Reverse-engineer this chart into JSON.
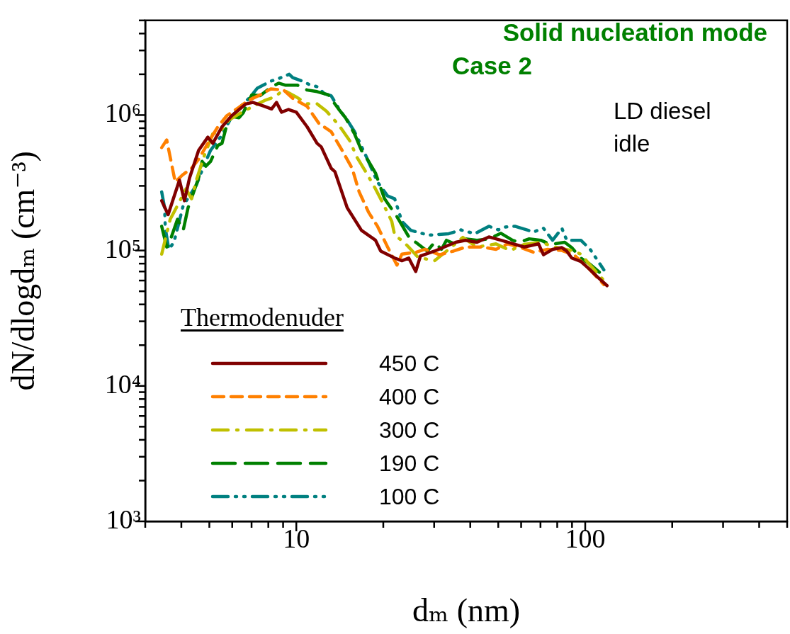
{
  "chart_data": {
    "type": "line",
    "xlabel": "dₘ (nm)",
    "ylabel": "dN/dlogdₘ (cm⁻³)",
    "legend_title": "Thermodenuder",
    "annotations": [
      "Solid nucleation mode",
      "Case 2",
      "LD diesel",
      "idle"
    ],
    "log": "xy",
    "grid": false,
    "legend": "bottom left",
    "marker": "none",
    "xlim": [
      3,
      500
    ],
    "ylim": [
      1000,
      5000000
    ],
    "xticks": [
      {
        "value": 3,
        "label": null
      },
      {
        "value": 4,
        "label": null
      },
      {
        "value": 5,
        "label": null
      },
      {
        "value": 6,
        "label": null
      },
      {
        "value": 7,
        "label": null
      },
      {
        "value": 8,
        "label": null
      },
      {
        "value": 9,
        "label": null
      },
      10,
      {
        "value": 20,
        "label": null
      },
      {
        "value": 30,
        "label": null
      },
      {
        "value": 40,
        "label": null
      },
      {
        "value": 50,
        "label": null
      },
      {
        "value": 60,
        "label": null
      },
      {
        "value": 70,
        "label": null
      },
      {
        "value": 80,
        "label": null
      },
      {
        "value": 90,
        "label": null
      },
      100,
      {
        "value": 200,
        "label": null
      },
      {
        "value": 300,
        "label": null
      },
      {
        "value": 400,
        "label": null
      },
      {
        "value": 500,
        "label": null
      }
    ],
    "yticks": [
      {
        "value": 1000,
        "label": "10³"
      },
      {
        "value": 2000,
        "label": null
      },
      {
        "value": 3000,
        "label": null
      },
      {
        "value": 4000,
        "label": null
      },
      {
        "value": 5000,
        "label": null
      },
      {
        "value": 6000,
        "label": null
      },
      {
        "value": 7000,
        "label": null
      },
      {
        "value": 8000,
        "label": null
      },
      {
        "value": 9000,
        "label": null
      },
      {
        "value": 10000,
        "label": "10⁴"
      },
      {
        "value": 20000,
        "label": null
      },
      {
        "value": 30000,
        "label": null
      },
      {
        "value": 40000,
        "label": null
      },
      {
        "value": 50000,
        "label": null
      },
      {
        "value": 60000,
        "label": null
      },
      {
        "value": 70000,
        "label": null
      },
      {
        "value": 80000,
        "label": null
      },
      {
        "value": 90000,
        "label": null
      },
      {
        "value": 100000,
        "label": "10⁵"
      },
      {
        "value": 200000,
        "label": null
      },
      {
        "value": 300000,
        "label": null
      },
      {
        "value": 400000,
        "label": null
      },
      {
        "value": 500000,
        "label": null
      },
      {
        "value": 600000,
        "label": null
      },
      {
        "value": 700000,
        "label": null
      },
      {
        "value": 800000,
        "label": null
      },
      {
        "value": 900000,
        "label": null
      },
      {
        "value": 1000000,
        "label": "10⁶"
      },
      {
        "value": 2000000,
        "label": null
      },
      {
        "value": 3000000,
        "label": null
      },
      {
        "value": 4000000,
        "label": null
      },
      {
        "value": 5000000,
        "label": null
      }
    ],
    "series": [
      {
        "name": "450 C",
        "color": "#800000",
        "line_style": "solid",
        "x": [
          3.42,
          3.6,
          3.94,
          4.1,
          4.27,
          4.59,
          4.94,
          5.14,
          5.53,
          5.98,
          6.7,
          7.08,
          7.76,
          8.21,
          8.54,
          8.89,
          9.4,
          10,
          10.9,
          11.8,
          12.2,
          13.2,
          13.6,
          15,
          16.8,
          18.8,
          19.6,
          21.9,
          23.2,
          24.5,
          25.9,
          26.9,
          30.1,
          32.5,
          35.6,
          38.5,
          42.2,
          46.4,
          51.1,
          57.1,
          61.5,
          68.9,
          71.7,
          77.1,
          83,
          86.3,
          89.8,
          96.6,
          104,
          110,
          119
        ],
        "values": [
          233000,
          184000,
          331000,
          233000,
          343000,
          549000,
          687000,
          618000,
          819000,
          990000,
          1210000,
          1240000,
          1160000,
          1110000,
          1240000,
          1050000,
          1100000,
          1050000,
          819000,
          618000,
          582000,
          405000,
          382000,
          207000,
          141000,
          119000,
          99000,
          88000,
          84000,
          88000,
          70000,
          91000,
          99000,
          106000,
          115000,
          119000,
          115000,
          126000,
          119000,
          111000,
          106000,
          112000,
          93000,
          102000,
          105000,
          99000,
          88000,
          83000,
          72000,
          64000,
          55000
        ]
      },
      {
        "name": "400 C",
        "color": "#ff8000",
        "line_style": "dashed",
        "x": [
          3.42,
          3.56,
          3.81,
          4.03,
          4.34,
          4.59,
          5.05,
          5.35,
          5.75,
          6.33,
          6.81,
          7.5,
          8.16,
          9.04,
          9.72,
          10.9,
          11.97,
          13.2,
          14.4,
          15.6,
          16.5,
          17.8,
          19.1,
          20.7,
          22.3,
          23.2,
          25.9,
          27.9,
          31.3,
          35,
          38.5,
          43.9,
          49.1,
          54,
          59.2,
          66.2,
          74.1,
          83,
          91.4,
          102,
          116
        ],
        "values": [
          575000,
          655000,
          320000,
          360000,
          405000,
          471000,
          671000,
          819000,
          990000,
          1140000,
          1280000,
          1410000,
          1560000,
          1530000,
          1330000,
          1160000,
          869000,
          755000,
          549000,
          405000,
          271000,
          191000,
          151000,
          106000,
          78000,
          94000,
          97000,
          102000,
          93000,
          99000,
          106000,
          106000,
          102000,
          112000,
          106000,
          97000,
          102000,
          100000,
          93000,
          75000,
          56000
        ]
      },
      {
        "name": "300 C",
        "color": "#c0c000",
        "line_style": "dashdot",
        "x": [
          3.42,
          3.66,
          3.88,
          4.15,
          4.34,
          4.51,
          4.78,
          5.14,
          5.44,
          5.85,
          6.44,
          7.08,
          7.76,
          8.4,
          9.04,
          10,
          10.9,
          11.8,
          12.7,
          14,
          15.3,
          16.2,
          17.5,
          18.8,
          19.9,
          21.4,
          21.9,
          23.6,
          24.9,
          26.4,
          30.1,
          33.7,
          37.7,
          42.2,
          49.1,
          55,
          61.5,
          70.2,
          78.5,
          89.8,
          96.6,
          104,
          116
        ],
        "values": [
          94000,
          170000,
          215000,
          285000,
          241000,
          331000,
          489000,
          728000,
          755000,
          920000,
          1040000,
          1160000,
          1280000,
          1360000,
          1530000,
          1360000,
          1210000,
          1210000,
          1070000,
          849000,
          648000,
          489000,
          373000,
          285000,
          225000,
          164000,
          130000,
          115000,
          102000,
          89000,
          84000,
          102000,
          125000,
          106000,
          112000,
          100000,
          111000,
          115000,
          106000,
          100000,
          94000,
          78000,
          60000
        ]
      },
      {
        "name": "190 C",
        "color": "#008000",
        "line_style": "longdash",
        "x": [
          3.42,
          3.56,
          3.66,
          3.88,
          4.06,
          4.22,
          4.39,
          4.59,
          4.72,
          4.86,
          5.05,
          5.35,
          5.53,
          5.75,
          5.98,
          6.33,
          6.55,
          7.01,
          7.5,
          8.21,
          8.69,
          9.19,
          10.1,
          10.9,
          11.8,
          12.9,
          14,
          14.8,
          15.9,
          16.8,
          17.8,
          18.8,
          20.2,
          22.3,
          24.9,
          25.9,
          28.4,
          30.1,
          31.8,
          33.1,
          35.6,
          38.5,
          42.2,
          46.4,
          51.1,
          56,
          59.2,
          64,
          70.2,
          75.8,
          84.9,
          89.8,
          96.6,
          104,
          112
        ],
        "values": [
          151000,
          106000,
          119000,
          170000,
          141000,
          207000,
          262000,
          343000,
          455000,
          419000,
          455000,
          597000,
          618000,
          849000,
          977000,
          955000,
          1040000,
          1410000,
          1390000,
          1620000,
          1720000,
          1660000,
          1660000,
          1530000,
          1490000,
          1410000,
          1110000,
          955000,
          728000,
          549000,
          455000,
          373000,
          241000,
          178000,
          119000,
          115000,
          99000,
          115000,
          102000,
          119000,
          111000,
          122000,
          119000,
          122000,
          134000,
          119000,
          115000,
          122000,
          119000,
          111000,
          115000,
          105000,
          88000,
          79000,
          69000
        ]
      },
      {
        "name": "100 C",
        "color": "#008080",
        "line_style": "dashdotdot",
        "x": [
          3.42,
          3.5,
          3.52,
          3.62,
          3.77,
          3.88,
          4.06,
          4.27,
          4.51,
          4.78,
          5.05,
          5.53,
          5.98,
          6.55,
          6.93,
          7.33,
          8.16,
          8.69,
          9.45,
          9.72,
          10.5,
          11.1,
          11.8,
          12.5,
          13.2,
          14.2,
          15,
          15.9,
          17.5,
          19.1,
          20.7,
          21.9,
          23.2,
          24.9,
          27.5,
          29,
          33.7,
          37.1,
          41.5,
          46.4,
          50,
          52.9,
          57.1,
          66.2,
          71.7,
          77.1,
          83,
          86.3,
          96.6,
          104,
          116
        ],
        "values": [
          271000,
          207000,
          146000,
          102000,
          115000,
          146000,
          215000,
          253000,
          305000,
          419000,
          549000,
          711000,
          977000,
          1210000,
          1360000,
          1580000,
          1780000,
          1860000,
          2000000,
          1890000,
          1780000,
          1680000,
          1620000,
          1440000,
          1390000,
          1070000,
          920000,
          755000,
          489000,
          320000,
          253000,
          241000,
          164000,
          141000,
          133000,
          130000,
          133000,
          142000,
          133000,
          151000,
          142000,
          149000,
          151000,
          137000,
          146000,
          119000,
          146000,
          119000,
          119000,
          102000,
          72000
        ]
      }
    ]
  }
}
